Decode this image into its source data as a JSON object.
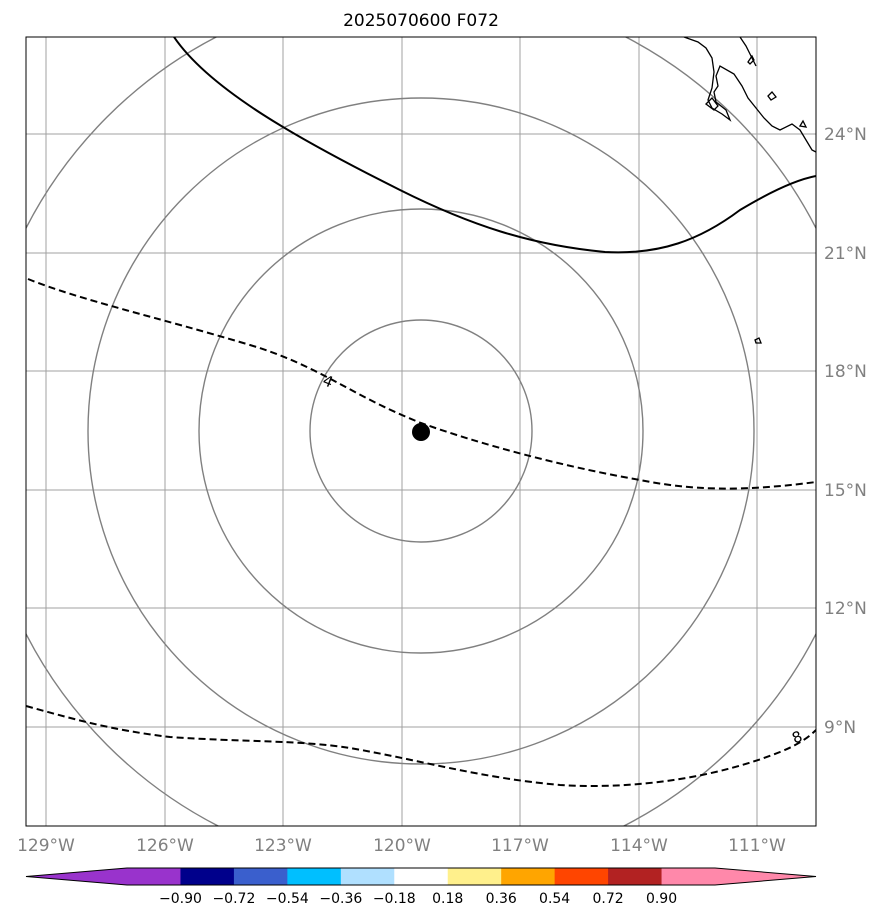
{
  "title": "2025070600 F072",
  "lon_ticks": [
    "129°W",
    "126°W",
    "123°W",
    "120°W",
    "117°W",
    "114°W",
    "111°W"
  ],
  "lat_ticks": [
    "24°N",
    "21°N",
    "18°N",
    "15°N",
    "12°N",
    "9°N"
  ],
  "contour_labels": [
    "4",
    "8"
  ],
  "colorbar": {
    "ticks": [
      "−0.90",
      "−0.72",
      "−0.54",
      "−0.36",
      "−0.18",
      "0.18",
      "0.36",
      "0.54",
      "0.72",
      "0.90"
    ],
    "colors": [
      "#9933cc",
      "#9933cc",
      "#00008b",
      "#3a5fcd",
      "#00bfff",
      "#b0e0ff",
      "#ffffff",
      "#fff08c",
      "#ffa500",
      "#ff4500",
      "#b22222",
      "#ff88aa",
      "#ff88aa"
    ]
  },
  "storm_center": {
    "lon": -119.5,
    "lat": 16.5
  },
  "range_rings_deg": [
    2.8,
    5.6,
    8.4,
    11.2
  ]
}
